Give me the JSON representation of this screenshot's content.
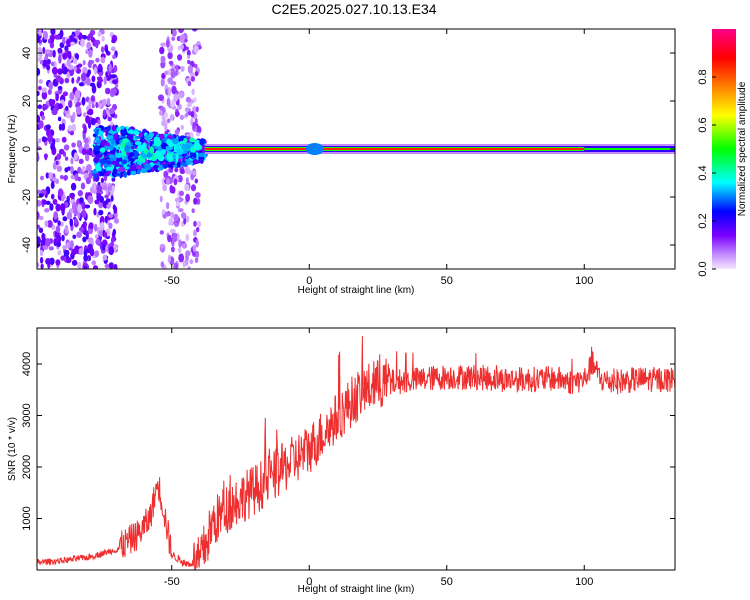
{
  "window": {
    "title": "C2E5.2025.027.10.13.E34"
  },
  "chart_data": [
    {
      "type": "heatmap",
      "title": "C2E5.2025.027.10.13.E34",
      "xlabel": "Height of straight line (km)",
      "ylabel": "Frequency (Hz)",
      "xlim": [
        -99,
        133
      ],
      "ylim": [
        -50,
        50
      ],
      "xticks": [
        -50,
        0,
        50,
        100
      ],
      "yticks": [
        -40,
        -20,
        0,
        20,
        40
      ],
      "colorbar": {
        "label": "Normalized spectral amplitude",
        "range": [
          0,
          1
        ],
        "ticks": [
          0.0,
          0.2,
          0.4,
          0.6,
          0.8
        ],
        "colormap": [
          "#e6c6ff",
          "#7a00ff",
          "#0000ff",
          "#00ffff",
          "#00ff00",
          "#ffff00",
          "#ff8000",
          "#ff0000",
          "#ff0080"
        ]
      },
      "features": [
        {
          "name": "scattered-noise",
          "x_range": [
            -99,
            -70
          ],
          "y_range": [
            -50,
            50
          ],
          "amplitude": 0.15
        },
        {
          "name": "scattered-noise",
          "x_range": [
            -54,
            -40
          ],
          "y_range": [
            -50,
            50
          ],
          "amplitude": 0.1
        },
        {
          "name": "main-blob",
          "x_range": [
            -78,
            -38
          ],
          "y_range": [
            -12,
            8
          ],
          "amplitude": 0.3
        },
        {
          "name": "dc-line",
          "x_range": [
            -38,
            133
          ],
          "y_center": 0,
          "amplitude": 0.85
        }
      ]
    },
    {
      "type": "line",
      "xlabel": "Height of straight line (km)",
      "ylabel": "SNR (10 * v/v)",
      "xlim": [
        -99,
        133
      ],
      "ylim": [
        0,
        4700
      ],
      "xticks": [
        -50,
        0,
        50,
        100
      ],
      "yticks": [
        1000,
        2000,
        3000,
        4000
      ],
      "series": [
        {
          "color": "#ee2f2f",
          "x": [
            -99,
            -90,
            -80,
            -70,
            -62,
            -58,
            -55,
            -53,
            -50,
            -45,
            -40,
            -35,
            -30,
            -25,
            -20,
            -15,
            -10,
            -5,
            0,
            5,
            10,
            15,
            20,
            25,
            30,
            40,
            50,
            60,
            70,
            80,
            90,
            95,
            100,
            103,
            106,
            110,
            120,
            133
          ],
          "y": [
            150,
            180,
            250,
            400,
            700,
            1000,
            1700,
            1200,
            300,
            120,
            150,
            900,
            1200,
            1400,
            1550,
            1750,
            1950,
            2150,
            2350,
            2650,
            2950,
            3250,
            3500,
            3600,
            3650,
            3700,
            3750,
            3750,
            3700,
            3700,
            3720,
            3650,
            3700,
            4000,
            3700,
            3650,
            3700,
            3700
          ]
        }
      ]
    }
  ]
}
